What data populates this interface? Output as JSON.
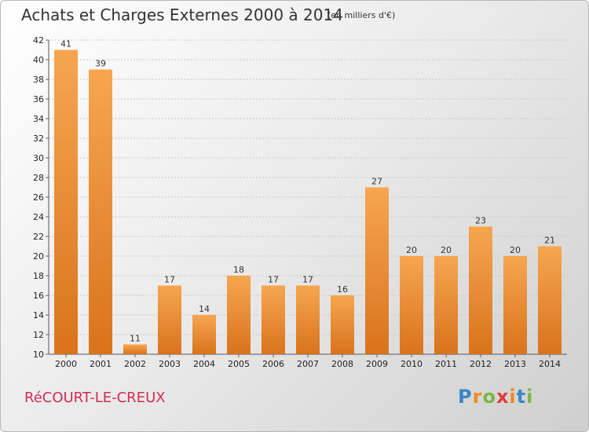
{
  "header": {
    "title": "Achats et Charges Externes 2000 à 2014",
    "unit": "(en milliers d'€)"
  },
  "footer": {
    "commune": "RéCOURT-LE-CREUX",
    "logo_letters": [
      "P",
      "r",
      "o",
      "x",
      "i",
      "t",
      "i"
    ],
    "logo_colors": [
      "#3a86c8",
      "#f08a1c",
      "#7ab648",
      "#e23a3a",
      "#f08a1c",
      "#3a86c8",
      "#7ab648"
    ]
  },
  "chart_data": {
    "type": "bar",
    "categories": [
      "2000",
      "2001",
      "2002",
      "2003",
      "2004",
      "2005",
      "2006",
      "2007",
      "2008",
      "2009",
      "2010",
      "2011",
      "2012",
      "2013",
      "2014"
    ],
    "values": [
      41,
      39,
      11,
      17,
      14,
      18,
      17,
      17,
      16,
      27,
      20,
      20,
      23,
      20,
      21
    ],
    "title": "Achats et Charges Externes 2000 à 2014",
    "xlabel": "",
    "ylabel": "",
    "ylim": [
      10,
      42
    ],
    "yticks": [
      10,
      12,
      14,
      16,
      18,
      20,
      22,
      24,
      26,
      28,
      30,
      32,
      34,
      36,
      38,
      40,
      42
    ],
    "grid": true,
    "bar_color": "#f08a24"
  }
}
